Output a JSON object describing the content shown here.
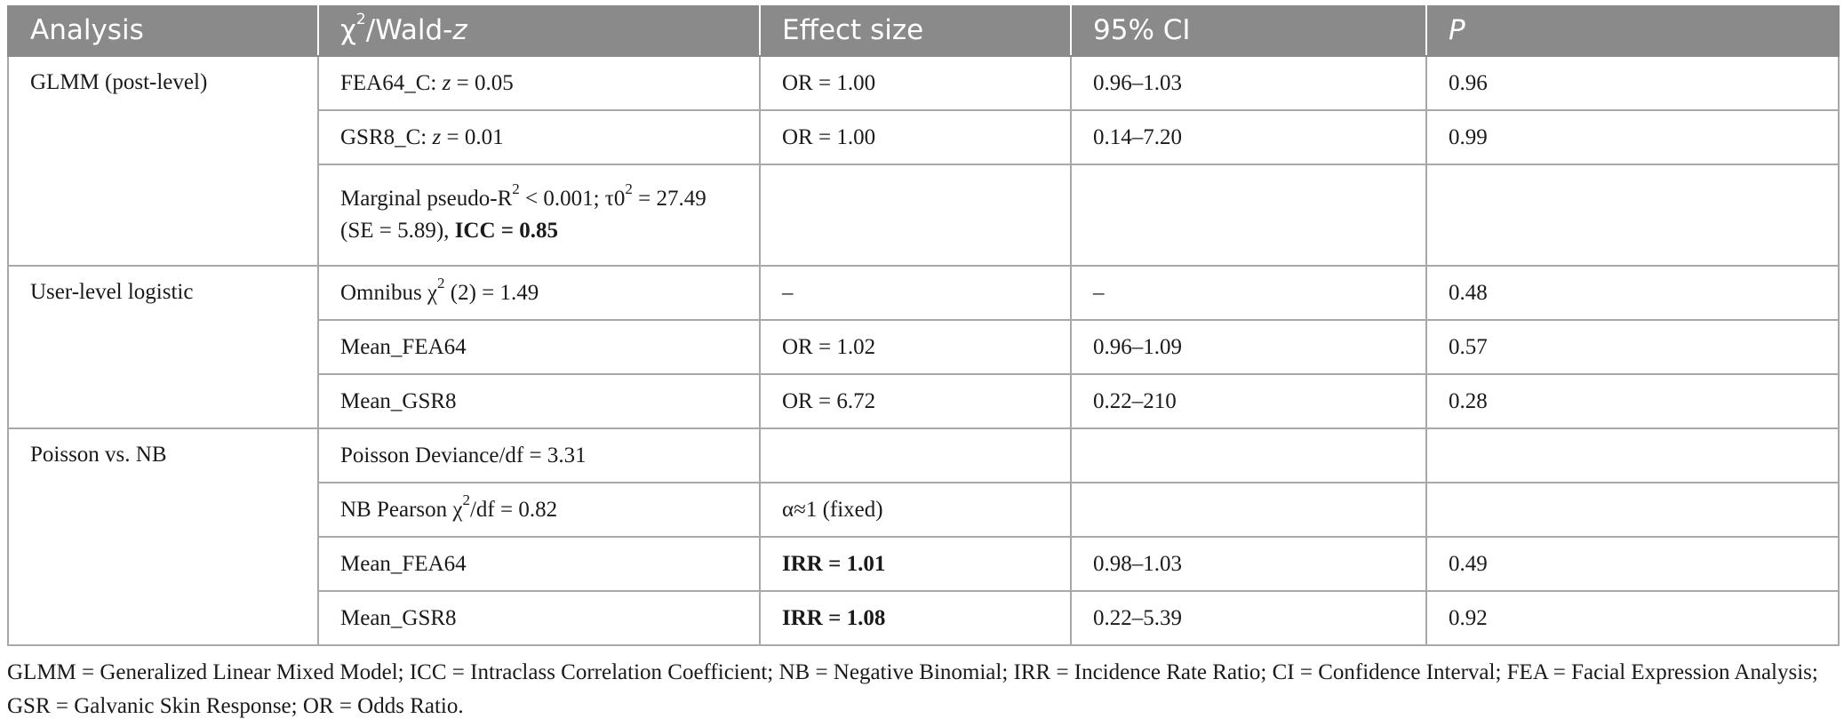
{
  "header": {
    "analysis": "Analysis",
    "stat_chi": "χ",
    "stat_sup": "2",
    "stat_rest": "/Wald-",
    "stat_z": "z",
    "effect": "Effect size",
    "ci": "95% CI",
    "p": "P"
  },
  "groups": {
    "glmm": "GLMM (post-level)",
    "user": "User-level logistic",
    "poisson": "Poisson vs. NB"
  },
  "rows": {
    "r1": {
      "pre": "FEA64_C: ",
      "z": "z",
      "post": " = 0.05",
      "effect": "OR = 1.00",
      "ci": "0.96–1.03",
      "p": "0.96"
    },
    "r2": {
      "pre": "GSR8_C: ",
      "z": "z",
      "post": " = 0.01",
      "effect": "OR = 1.00",
      "ci": "0.14–7.20",
      "p": "0.99"
    },
    "r3": {
      "a": "Marginal pseudo-R",
      "a_sup": "2",
      "b": " < 0.001; τ0",
      "b_sup": "2",
      "c": " = 27.49",
      "d": "(SE = 5.89), ",
      "icc": "ICC = 0.85"
    },
    "r4": {
      "a": "Omnibus χ",
      "a_sup": "2",
      "b": " (2) = 1.49",
      "effect": "–",
      "ci": "–",
      "p": "0.48"
    },
    "r5": {
      "stat": "Mean_FEA64",
      "effect": "OR = 1.02",
      "ci": "0.96–1.09",
      "p": "0.57"
    },
    "r6": {
      "stat": "Mean_GSR8",
      "effect": "OR = 6.72",
      "ci": "0.22–210",
      "p": "0.28"
    },
    "r7": {
      "stat": "Poisson Deviance/df = 3.31"
    },
    "r8": {
      "a": "NB Pearson χ",
      "a_sup": "2",
      "b": "/df = 0.82",
      "effect": "α≈1 (fixed)"
    },
    "r9": {
      "stat": "Mean_FEA64",
      "effect": "IRR = 1.01",
      "ci": "0.98–1.03",
      "p": "0.49"
    },
    "r10": {
      "stat": "Mean_GSR8",
      "effect": "IRR = 1.08",
      "ci": "0.22–5.39",
      "p": "0.92"
    }
  },
  "footnote": "GLMM = Generalized Linear Mixed Model; ICC = Intraclass Correlation Coefficient; NB = Negative Binomial; IRR = Incidence Rate Ratio; CI = Confidence Interval; FEA = Facial Expression Analysis; GSR = Galvanic Skin Response; OR = Odds Ratio."
}
